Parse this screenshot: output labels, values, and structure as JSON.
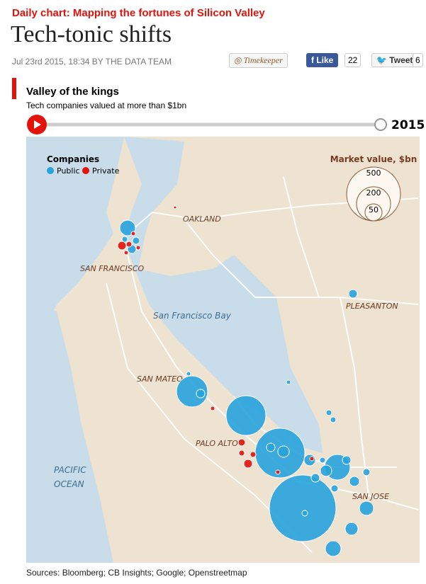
{
  "header": {
    "kicker": "Daily chart: Mapping the fortunes of Silicon Valley",
    "title": "Tech-tonic shifts",
    "byline": "Jul 23rd 2015, 18:34 BY THE DATA TEAM"
  },
  "share": {
    "timekeeper": "Timekeeper",
    "like": "Like",
    "like_count": "22",
    "tweet": "Tweet",
    "tweet_count": "6"
  },
  "graphic": {
    "title": "Valley of the kings",
    "subtitle": "Tech companies valued at more than $1bn",
    "year": "2015",
    "legend": {
      "title": "Companies",
      "items": [
        "Public",
        "Private"
      ]
    },
    "size_legend": {
      "title": "Market value, $bn",
      "sizes": [
        500,
        200,
        50
      ]
    },
    "places": [
      "OAKLAND",
      "SAN FRANCISCO",
      "San Francisco Bay",
      "PLEASANTON",
      "SAN MATEO",
      "PALO ALTO",
      "PACIFIC",
      "OCEAN",
      "SAN JOSE"
    ],
    "source": "Sources: Bloomberg; CB Insights; Google; Openstreetmap"
  }
}
